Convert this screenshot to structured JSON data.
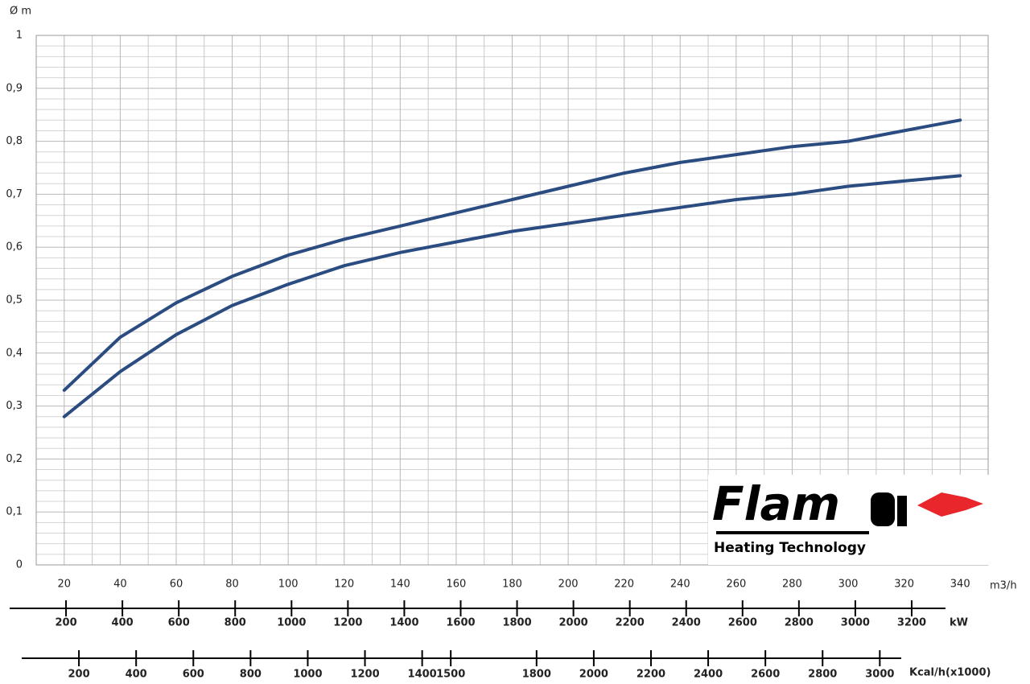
{
  "chart_data": {
    "type": "line",
    "y_label": "Ø m",
    "x_label": "m3/h",
    "x": [
      20,
      40,
      60,
      80,
      100,
      120,
      140,
      160,
      180,
      200,
      220,
      240,
      260,
      280,
      300,
      320,
      340
    ],
    "series": [
      {
        "color": "#2b4c80",
        "values": [
          0.33,
          0.43,
          0.495,
          0.545,
          0.585,
          0.615,
          0.64,
          0.665,
          0.69,
          0.715,
          0.74,
          0.76,
          0.775,
          0.79,
          0.8,
          0.82,
          0.84
        ]
      },
      {
        "color": "#2b4c80",
        "values": [
          0.28,
          0.365,
          0.435,
          0.49,
          0.53,
          0.565,
          0.59,
          0.61,
          0.63,
          0.645,
          0.66,
          0.675,
          0.69,
          0.7,
          0.715,
          0.725,
          0.735
        ]
      }
    ],
    "xlim": [
      10,
      350
    ],
    "xticks": [
      20,
      40,
      60,
      80,
      100,
      120,
      140,
      160,
      180,
      200,
      220,
      240,
      260,
      280,
      300,
      320,
      340
    ],
    "ylim": [
      0,
      1
    ],
    "yticks": [
      0,
      {
        "value": 0.1,
        "label": "0,1"
      },
      {
        "value": 0.2,
        "label": "0,2"
      },
      {
        "value": 0.3,
        "label": "0,3"
      },
      {
        "value": 0.4,
        "label": "0,4"
      },
      {
        "value": 0.5,
        "label": "0,5"
      },
      {
        "value": 0.6,
        "label": "0,6"
      },
      {
        "value": 0.7,
        "label": "0,7"
      },
      {
        "value": 0.8,
        "label": "0,8"
      },
      {
        "value": 0.9,
        "label": "0,9"
      },
      1
    ],
    "grid": true,
    "kw_axis": {
      "label": "kW",
      "lim": [
        0,
        3320
      ],
      "ticks": [
        200,
        400,
        600,
        800,
        1000,
        1200,
        1400,
        1600,
        1800,
        2000,
        2200,
        2400,
        2600,
        2800,
        3000,
        3200
      ]
    },
    "kcal_axis": {
      "label": "Kcal/h(x1000)",
      "lim": [
        0,
        3075
      ],
      "ticks": [
        200,
        400,
        600,
        800,
        1000,
        1200,
        1400,
        1500,
        1800,
        2000,
        2200,
        2400,
        2600,
        2800,
        3000
      ]
    }
  },
  "logo": {
    "name": "Flam",
    "tagline": "Heating Technology"
  }
}
